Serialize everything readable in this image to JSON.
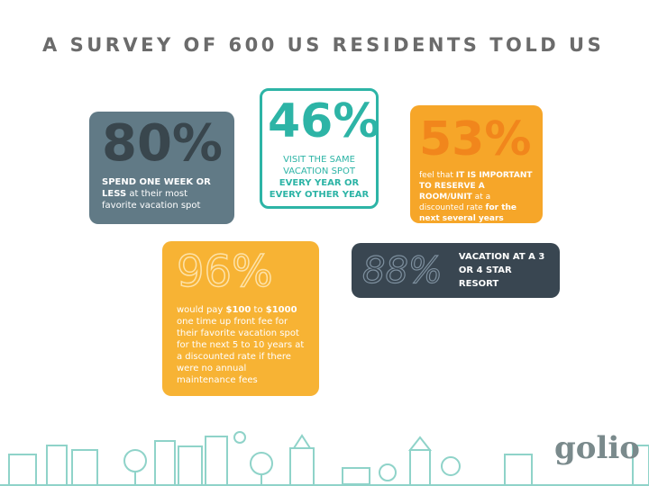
{
  "title": "A SURVEY OF 600 US RESIDENTS TOLD US",
  "cards": [
    {
      "stat": "80%",
      "desc": [
        {
          "text": "SPEND ONE WEEK OR LESS",
          "bold": true
        },
        {
          "text": " at their most favorite vacation spot",
          "bold": false
        }
      ]
    },
    {
      "stat": "46%",
      "desc": [
        {
          "text": "VISIT THE SAME VACATION SPOT ",
          "bold": false
        },
        {
          "text": "EVERY YEAR OR EVERY OTHER YEAR",
          "bold": true
        }
      ]
    },
    {
      "stat": "53%",
      "desc": [
        {
          "text": "feel that ",
          "bold": false
        },
        {
          "text": "IT IS IMPORTANT TO RESERVE A ROOM/UNIT",
          "bold": true
        },
        {
          "text": " at a discounted rate ",
          "bold": false
        },
        {
          "text": "for the next several years",
          "bold": true
        }
      ]
    },
    {
      "stat": "96%",
      "desc": [
        {
          "text": "would pay ",
          "bold": false
        },
        {
          "text": "$100",
          "bold": true
        },
        {
          "text": " to ",
          "bold": false
        },
        {
          "text": "$1000",
          "bold": true
        },
        {
          "text": " one time up front fee for their favorite vacation spot for the next 5 to 10 years at a discounted rate if there were no annual maintenance fees",
          "bold": false
        }
      ]
    },
    {
      "stat": "88%",
      "desc": [
        {
          "text": "VACATION AT A 3 OR 4 STAR RESORT",
          "bold": true
        }
      ]
    }
  ],
  "logo": "golio"
}
